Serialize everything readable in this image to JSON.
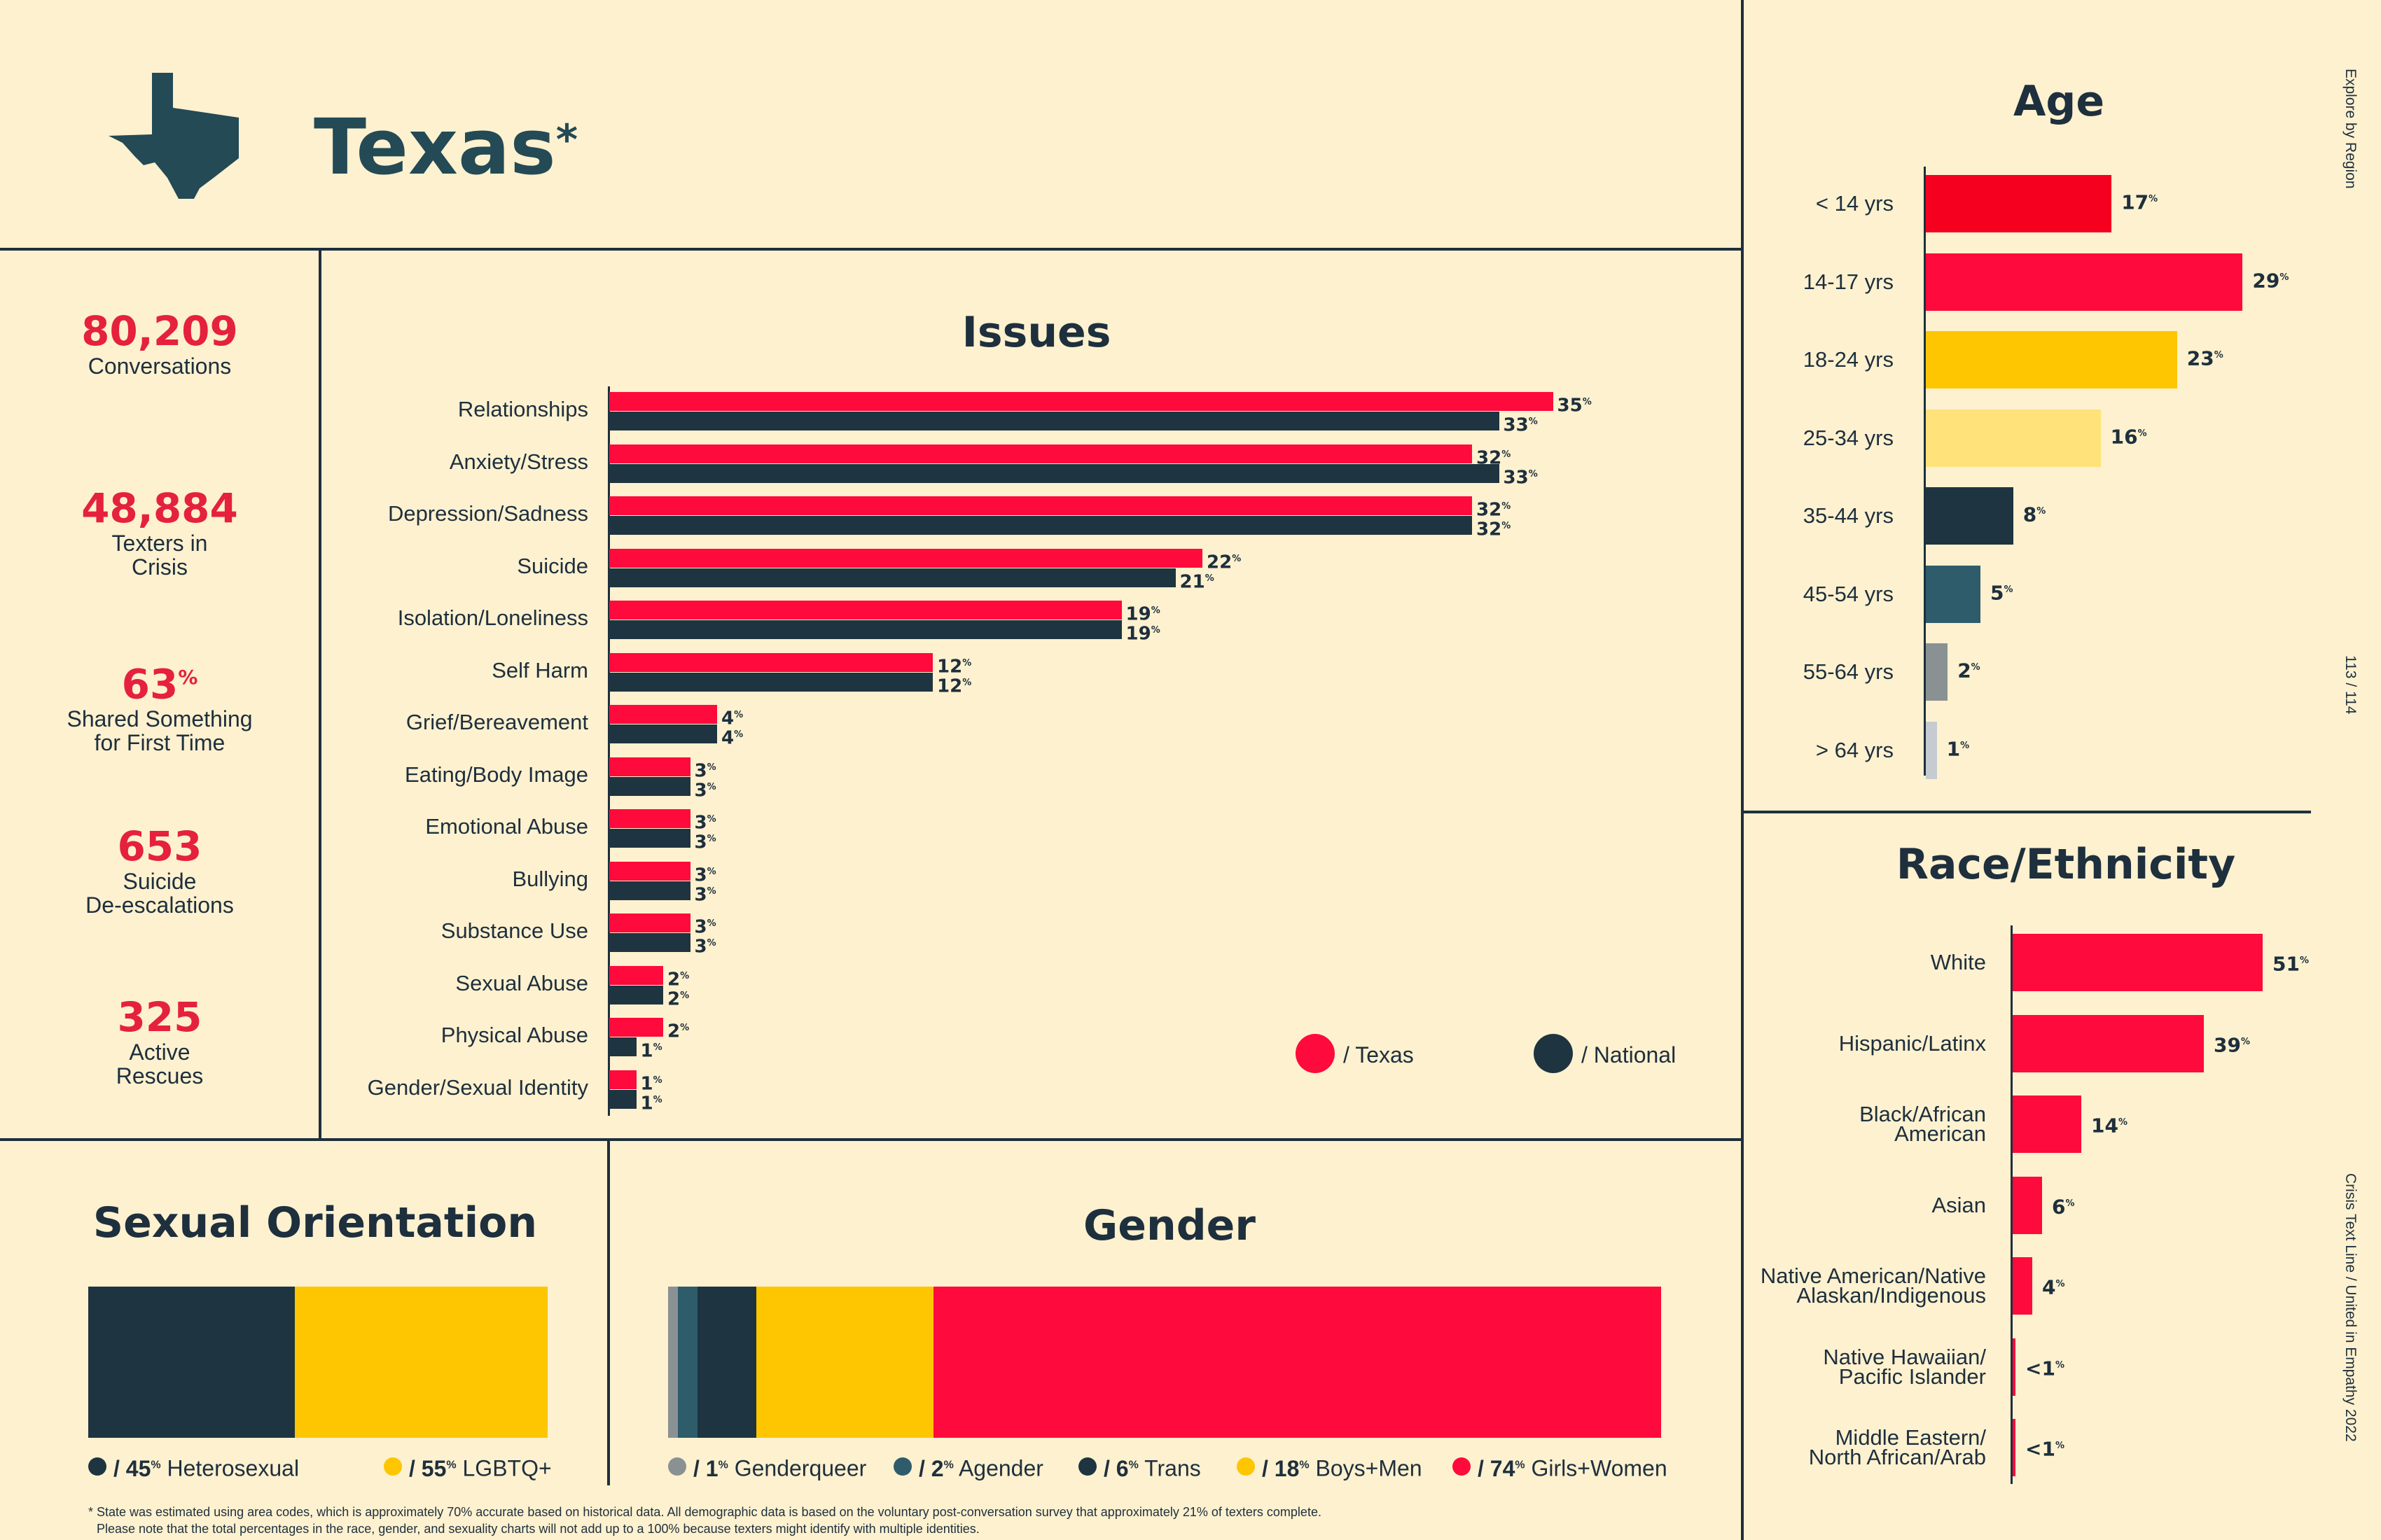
{
  "header": {
    "state": "Texas",
    "asterisk": "*"
  },
  "side_text": {
    "top": "Explore by Region",
    "page": "113 / 114",
    "bottom": "Crisis Text Line  /  United in Empathy 2022"
  },
  "stats": [
    {
      "value": "80,209",
      "label_1": "Conversations",
      "label_2": ""
    },
    {
      "value": "48,884",
      "label_1": "Texters in",
      "label_2": "Crisis"
    },
    {
      "value": "63",
      "value_sup": "%",
      "label_1": "Shared Something",
      "label_2": "for First Time"
    },
    {
      "value": "653",
      "label_1": "Suicide",
      "label_2": "De-escalations"
    },
    {
      "value": "325",
      "label_1": "Active",
      "label_2": "Rescues"
    }
  ],
  "legend": {
    "texas": "/ Texas",
    "national": "/ National"
  },
  "footnote": {
    "line1": "* State was estimated using area codes, which is approximately 70% accurate based on historical data. All demographic data is based on the voluntary post-conversation survey that approximately 21% of texters complete.",
    "line2": "Please note that the total percentages in the race, gender, and sexuality charts will not add up to a 100% because texters might identify with multiple identities."
  },
  "colors": {
    "red": "#ff0a3c",
    "navy": "#1e3440",
    "yellow": "#fdc600",
    "lightyellow": "#ffe27a",
    "teal": "#2e5c6b",
    "gray": "#8a9193",
    "lightgray": "#c5cbd1",
    "brightred": "#f5001f"
  },
  "chart_data": [
    {
      "type": "bar",
      "title": "Issues",
      "orientation": "horizontal",
      "categories": [
        "Relationships",
        "Anxiety/Stress",
        "Depression/Sadness",
        "Suicide",
        "Isolation/Loneliness",
        "Self Harm",
        "Grief/Bereavement",
        "Eating/Body Image",
        "Emotional Abuse",
        "Bullying",
        "Substance Use",
        "Sexual Abuse",
        "Physical Abuse",
        "Gender/Sexual Identity"
      ],
      "series": [
        {
          "name": "Texas",
          "values": [
            35,
            32,
            32,
            22,
            19,
            12,
            4,
            3,
            3,
            3,
            3,
            2,
            2,
            1
          ],
          "labels": [
            "35",
            "32",
            "32",
            "22",
            "19",
            "12",
            "4",
            "3",
            "3",
            "3",
            "3",
            "2",
            "2",
            "1"
          ]
        },
        {
          "name": "National",
          "values": [
            33,
            33,
            32,
            21,
            19,
            12,
            4,
            3,
            3,
            3,
            3,
            2,
            1,
            1
          ],
          "labels": [
            "33",
            "33",
            "32",
            "21",
            "19",
            "12",
            "4",
            "3",
            "3",
            "3",
            "3",
            "2",
            "1",
            "1"
          ]
        }
      ],
      "unit": "%"
    },
    {
      "type": "bar",
      "title": "Age",
      "orientation": "horizontal",
      "categories": [
        "< 14 yrs",
        "14-17 yrs",
        "18-24 yrs",
        "25-34 yrs",
        "35-44 yrs",
        "45-54 yrs",
        "55-64 yrs",
        "> 64 yrs"
      ],
      "values": [
        17,
        29,
        23,
        16,
        8,
        5,
        2,
        1
      ],
      "labels": [
        "17",
        "29",
        "23",
        "16",
        "8",
        "5",
        "2",
        "1"
      ],
      "colors": [
        "#f5001f",
        "#ff0a3c",
        "#fdc600",
        "#ffe27a",
        "#1e3440",
        "#2e5c6b",
        "#8a9193",
        "#c5cbd1"
      ],
      "unit": "%"
    },
    {
      "type": "bar",
      "title": "Race/Ethnicity",
      "orientation": "horizontal",
      "categories": [
        [
          "White"
        ],
        [
          "Hispanic/Latinx"
        ],
        [
          "Black/African",
          "American"
        ],
        [
          "Asian"
        ],
        [
          "Native American/Native",
          "Alaskan/Indigenous"
        ],
        [
          "Native Hawaiian/",
          "Pacific Islander"
        ],
        [
          "Middle Eastern/",
          "North African/Arab"
        ]
      ],
      "values": [
        51,
        39,
        14,
        6,
        4,
        0.5,
        0.5
      ],
      "labels": [
        "51",
        "39",
        "14",
        "6",
        "4",
        "<1",
        "<1"
      ],
      "unit": "%"
    },
    {
      "type": "bar",
      "title": "Sexual Orientation",
      "orientation": "stacked-horizontal",
      "segments": [
        {
          "name": "Heterosexual",
          "value": 45,
          "color": "#1e3440"
        },
        {
          "name": "LGBTQ+",
          "value": 55,
          "color": "#fdc600"
        }
      ],
      "unit": "%"
    },
    {
      "type": "bar",
      "title": "Gender",
      "orientation": "stacked-horizontal",
      "segments": [
        {
          "name": "Genderqueer",
          "value": 1,
          "color": "#8a9193"
        },
        {
          "name": "Agender",
          "value": 2,
          "color": "#2e5c6b"
        },
        {
          "name": "Trans",
          "value": 6,
          "color": "#1e3440"
        },
        {
          "name": "Boys+Men",
          "value": 18,
          "color": "#fdc600"
        },
        {
          "name": "Girls+Women",
          "value": 74,
          "color": "#ff0a3c"
        }
      ],
      "unit": "%"
    }
  ]
}
